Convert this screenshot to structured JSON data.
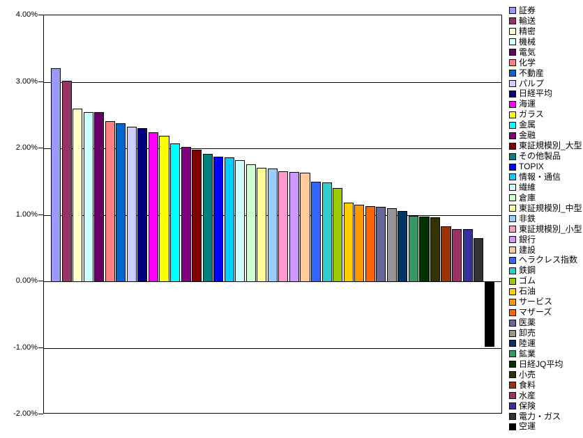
{
  "chart_data": {
    "type": "bar",
    "title": "",
    "xlabel": "",
    "ylabel": "",
    "ylim": [
      -2.0,
      4.0
    ],
    "ytick_step": 1.0,
    "ytick_labels": [
      "4.00%",
      "3.00%",
      "2.00%",
      "1.00%",
      "0.00%",
      "-1.00%",
      "-2.00%"
    ],
    "grid": true,
    "legend_position": "right",
    "background_color": "#FFFFFF",
    "plot_border_color": "#000000",
    "gridline_color": "#000000",
    "bar_border_color": "#000000",
    "categories": [
      "証券",
      "輸送",
      "精密",
      "機械",
      "電気",
      "化学",
      "不動産",
      "パルプ",
      "日経平均",
      "海運",
      "ガラス",
      "金属",
      "金融",
      "東証規模別_大型",
      "その他製品",
      "TOPIX",
      "情報・通信",
      "繊維",
      "倉庫",
      "東証規模別_中型",
      "非鉄",
      "東証規模別_小型",
      "銀行",
      "建設",
      "ヘラクレス指数",
      "鉄鋼",
      "ゴム",
      "石油",
      "サービス",
      "マザーズ",
      "医薬",
      "卸売",
      "陸運",
      "鉱業",
      "日経JQ平均",
      "小売",
      "食料",
      "水産",
      "保険",
      "電力・ガス",
      "空運"
    ],
    "values": [
      3.2,
      3.02,
      2.6,
      2.55,
      2.55,
      2.41,
      2.38,
      2.33,
      2.3,
      2.24,
      2.19,
      2.07,
      2.02,
      1.98,
      1.92,
      1.88,
      1.86,
      1.82,
      1.76,
      1.71,
      1.7,
      1.66,
      1.64,
      1.63,
      1.5,
      1.49,
      1.4,
      1.18,
      1.15,
      1.13,
      1.12,
      1.1,
      1.06,
      0.99,
      0.97,
      0.96,
      0.83,
      0.79,
      0.79,
      0.65,
      -0.97
    ],
    "colors": [
      "#9999FF",
      "#993366",
      "#FFFFCC",
      "#CCFFFF",
      "#660066",
      "#FF8080",
      "#0066CC",
      "#CCCCFF",
      "#000080",
      "#FF00FF",
      "#FFFF00",
      "#00FFFF",
      "#800080",
      "#800000",
      "#008080",
      "#0000FF",
      "#00CCFF",
      "#CCFFFF",
      "#CCFFCC",
      "#FFFF99",
      "#99CCFF",
      "#FF99CC",
      "#CC99FF",
      "#FFCC99",
      "#3366FF",
      "#33CCCC",
      "#99CC00",
      "#FFCC00",
      "#FF9900",
      "#FF6600",
      "#666699",
      "#969696",
      "#003366",
      "#339966",
      "#003300",
      "#333300",
      "#993300",
      "#993366",
      "#333399",
      "#333333",
      "#000000"
    ]
  }
}
